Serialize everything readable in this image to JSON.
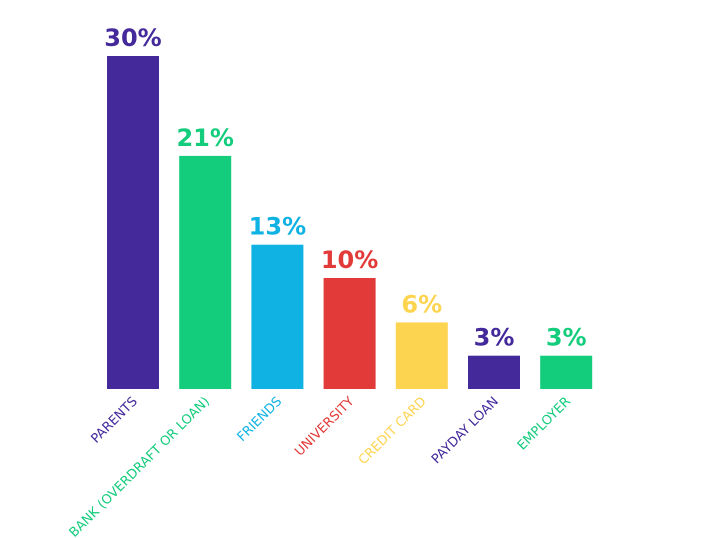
{
  "chart_data": {
    "type": "bar",
    "categories": [
      "PARENTS",
      "BANK (OVERDRAFT OR LOAN)",
      "FRIENDS",
      "UNIVERSITY",
      "CREDIT CARD",
      "PAYDAY LOAN",
      "EMPLOYER"
    ],
    "values": [
      30,
      21,
      13,
      10,
      6,
      3,
      3
    ],
    "value_labels": [
      "30%",
      "21%",
      "13%",
      "10%",
      "6%",
      "3%",
      "3%"
    ],
    "colors": [
      "#44299b",
      "#13cc7c",
      "#0fb2e3",
      "#e23a38",
      "#fdd44f",
      "#44299b",
      "#13cc7c"
    ]
  }
}
